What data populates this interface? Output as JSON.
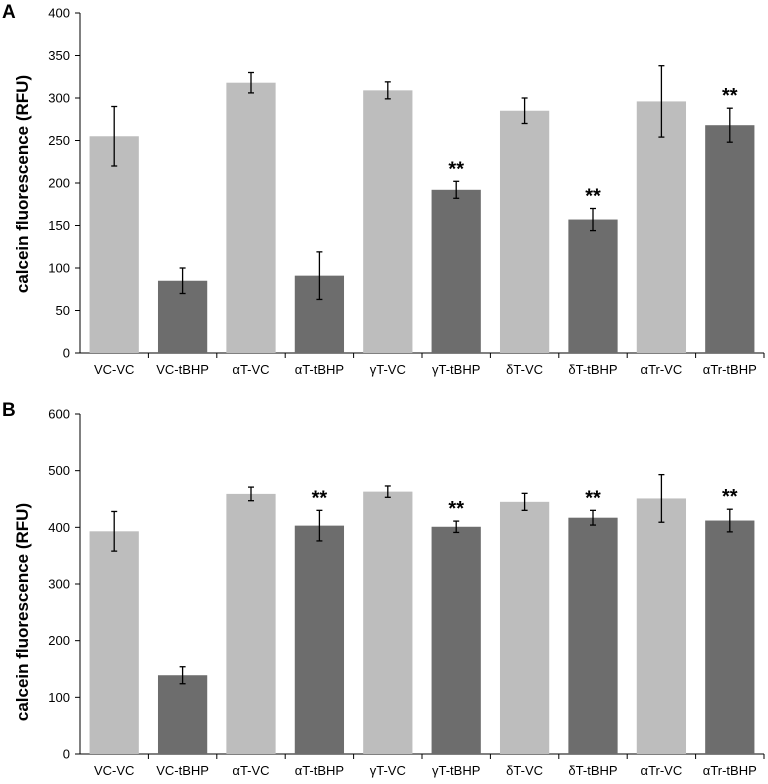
{
  "chart_data": [
    {
      "panel": "A",
      "type": "bar",
      "ylabel": "calcein fluorescence (RFU)",
      "ylim": [
        0,
        400
      ],
      "yticks": [
        0,
        50,
        100,
        150,
        200,
        250,
        300,
        350,
        400
      ],
      "categories": [
        "VC-VC",
        "VC-tBHP",
        "αT-VC",
        "αT-tBHP",
        "γT-VC",
        "γT-tBHP",
        "δT-VC",
        "δT-tBHP",
        "αTr-VC",
        "αTr-tBHP"
      ],
      "values": [
        255,
        85,
        318,
        91,
        309,
        192,
        285,
        157,
        296,
        268
      ],
      "errors": [
        35,
        15,
        12,
        28,
        10,
        10,
        15,
        13,
        42,
        20
      ],
      "significance": [
        "",
        "",
        "",
        "",
        "",
        "**",
        "",
        "**",
        "",
        "**"
      ],
      "bar_colors": [
        "#bdbdbd",
        "#6d6d6d",
        "#bdbdbd",
        "#6d6d6d",
        "#bdbdbd",
        "#6d6d6d",
        "#bdbdbd",
        "#6d6d6d",
        "#bdbdbd",
        "#6d6d6d"
      ]
    },
    {
      "panel": "B",
      "type": "bar",
      "ylabel": "calcein fluorescence (RFU)",
      "ylim": [
        0,
        600
      ],
      "yticks": [
        0,
        100,
        200,
        300,
        400,
        500,
        600
      ],
      "categories": [
        "VC-VC",
        "VC-tBHP",
        "αT-VC",
        "αT-tBHP",
        "γT-VC",
        "γT-tBHP",
        "δT-VC",
        "δT-tBHP",
        "αTr-VC",
        "αTr-tBHP"
      ],
      "values": [
        393,
        139,
        459,
        403,
        463,
        401,
        445,
        417,
        451,
        412
      ],
      "errors": [
        35,
        15,
        12,
        27,
        10,
        10,
        15,
        13,
        42,
        20
      ],
      "significance": [
        "",
        "",
        "",
        "**",
        "",
        "**",
        "",
        "**",
        "",
        "**"
      ],
      "bar_colors": [
        "#bdbdbd",
        "#6d6d6d",
        "#bdbdbd",
        "#6d6d6d",
        "#bdbdbd",
        "#6d6d6d",
        "#bdbdbd",
        "#6d6d6d",
        "#bdbdbd",
        "#6d6d6d"
      ]
    }
  ]
}
